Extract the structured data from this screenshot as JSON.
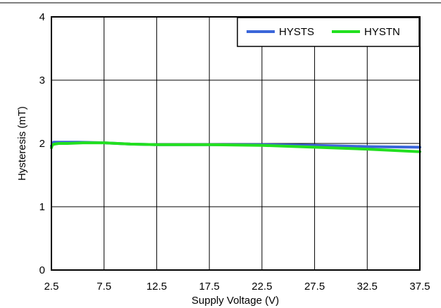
{
  "chart_data": {
    "type": "line",
    "xlabel": "Supply Voltage (V)",
    "ylabel": "Hysteresis (mT)",
    "xlim": [
      2.5,
      37.5
    ],
    "ylim": [
      0,
      4
    ],
    "xticks": [
      "2.5",
      "7.5",
      "12.5",
      "17.5",
      "22.5",
      "27.5",
      "32.5",
      "37.5"
    ],
    "yticks": [
      "0",
      "1",
      "2",
      "3",
      "4"
    ],
    "grid": true,
    "legend_position": "top-right",
    "series": [
      {
        "name": "HYSTS",
        "color": "#3b66d9",
        "x": [
          2.5,
          2.7,
          3,
          3.5,
          5,
          7.5,
          10,
          12.5,
          17.5,
          22.5,
          27.5,
          32.5,
          37.5
        ],
        "y": [
          1.96,
          2.02,
          2.02,
          2.02,
          2.02,
          2.01,
          1.99,
          1.98,
          1.98,
          1.98,
          1.97,
          1.95,
          1.94
        ]
      },
      {
        "name": "HYSTN",
        "color": "#22e01f",
        "x": [
          2.5,
          2.6,
          2.8,
          3.2,
          4,
          5.5,
          7.5,
          10,
          12.5,
          17.5,
          22.5,
          27.5,
          32.5,
          37.5
        ],
        "y": [
          1.93,
          1.98,
          1.99,
          2.0,
          2.0,
          2.01,
          2.01,
          1.99,
          1.98,
          1.98,
          1.97,
          1.94,
          1.91,
          1.87
        ]
      }
    ]
  }
}
